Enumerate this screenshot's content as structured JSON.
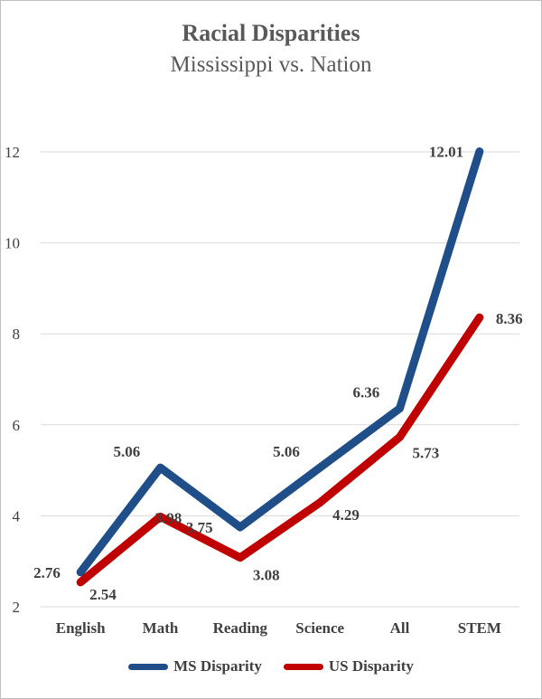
{
  "chart_data": {
    "type": "line",
    "title": "Racial Disparities",
    "subtitle": "Mississippi vs. Nation",
    "categories": [
      "English",
      "Math",
      "Reading",
      "Science",
      "All",
      "STEM"
    ],
    "ylim": [
      2,
      12
    ],
    "yticks": [
      2,
      4,
      6,
      8,
      10,
      12
    ],
    "grid": true,
    "legend_position": "bottom",
    "series": [
      {
        "name": "MS Disparity",
        "color": "#1F4E88",
        "values": [
          2.76,
          5.06,
          3.75,
          5.06,
          6.36,
          12.01
        ],
        "labels": [
          "2.76",
          "5.06",
          "3.75",
          "5.06",
          "6.36",
          "12.01"
        ]
      },
      {
        "name": "US Disparity",
        "color": "#C00000",
        "values": [
          2.54,
          3.98,
          3.08,
          4.29,
          5.73,
          8.36
        ],
        "labels": [
          "2.54",
          "3.98",
          "3.08",
          "4.29",
          "5.73",
          "8.36"
        ]
      }
    ]
  }
}
